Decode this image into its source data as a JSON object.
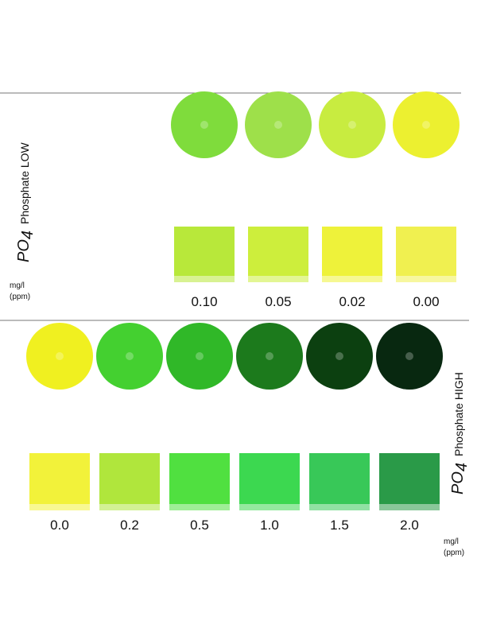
{
  "sections": [
    {
      "formula": "PO",
      "subscript": "4",
      "name": "Phosphate LOW",
      "unit": "mg/l",
      "unit_note": "(ppm)",
      "levels": [
        {
          "label": "0.10",
          "disc_color": "#7fdc3c",
          "vial_color": "#b8e83a"
        },
        {
          "label": "0.05",
          "disc_color": "#9ee04a",
          "vial_color": "#cdee3c"
        },
        {
          "label": "0.02",
          "disc_color": "#c8ec40",
          "vial_color": "#eef23a"
        },
        {
          "label": "0.00",
          "disc_color": "#ecf030",
          "vial_color": "#f0f050"
        }
      ]
    },
    {
      "formula": "PO",
      "subscript": "4",
      "name": "Phosphate HIGH",
      "unit": "mg/l",
      "unit_note": "(ppm)",
      "levels": [
        {
          "label": "0.0",
          "disc_color": "#f0f020",
          "vial_color": "#f2f23a"
        },
        {
          "label": "0.2",
          "disc_color": "#44d030",
          "vial_color": "#b0e63c"
        },
        {
          "label": "0.5",
          "disc_color": "#30b828",
          "vial_color": "#50e040"
        },
        {
          "label": "1.0",
          "disc_color": "#1c7a1c",
          "vial_color": "#3cd850"
        },
        {
          "label": "1.5",
          "disc_color": "#0c4010",
          "vial_color": "#38c858"
        },
        {
          "label": "2.0",
          "disc_color": "#082810",
          "vial_color": "#2a9a48"
        }
      ]
    }
  ]
}
